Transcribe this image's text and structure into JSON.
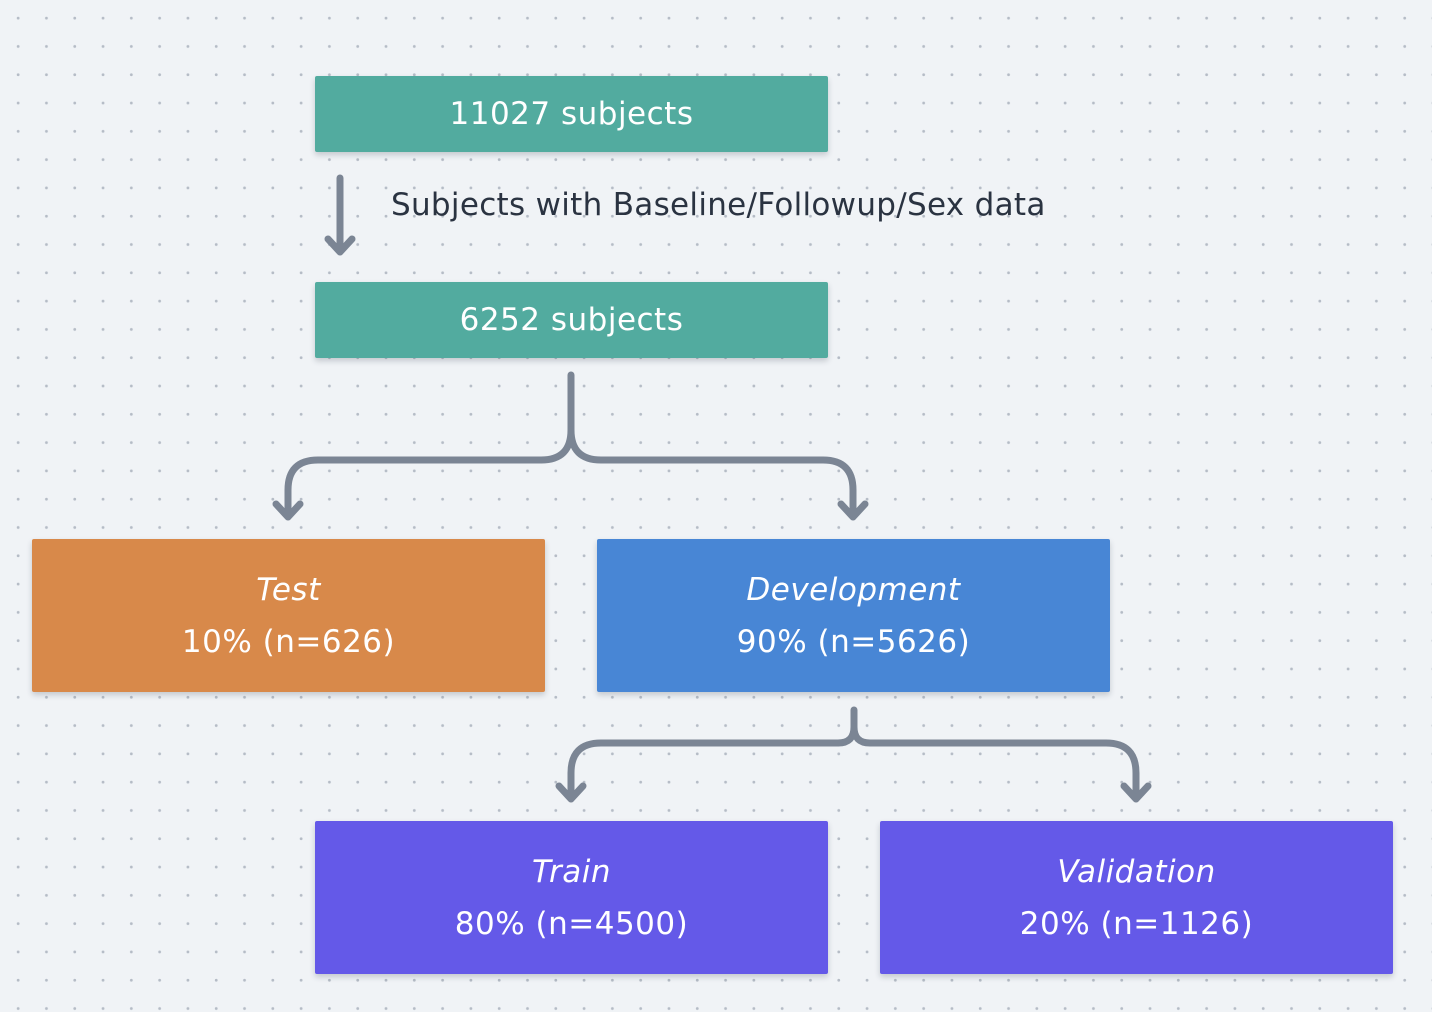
{
  "nodes": {
    "total": {
      "label": "11027 subjects",
      "color": "#52ab9f"
    },
    "filtered": {
      "label": "6252 subjects",
      "color": "#52ab9f"
    },
    "test": {
      "name": "Test",
      "detail": "10% (n=626)",
      "color": "#d8894a"
    },
    "development": {
      "name": "Development",
      "detail": "90% (n=5626)",
      "color": "#4886d5"
    },
    "train": {
      "name": "Train",
      "detail": "80% (n=4500)",
      "color": "#6459e8"
    },
    "validation": {
      "name": "Validation",
      "detail": "20% (n=1126)",
      "color": "#6459e8"
    }
  },
  "edges": {
    "filter_label": "Subjects with Baseline/Followup/Sex data",
    "color": "#7b8594"
  }
}
